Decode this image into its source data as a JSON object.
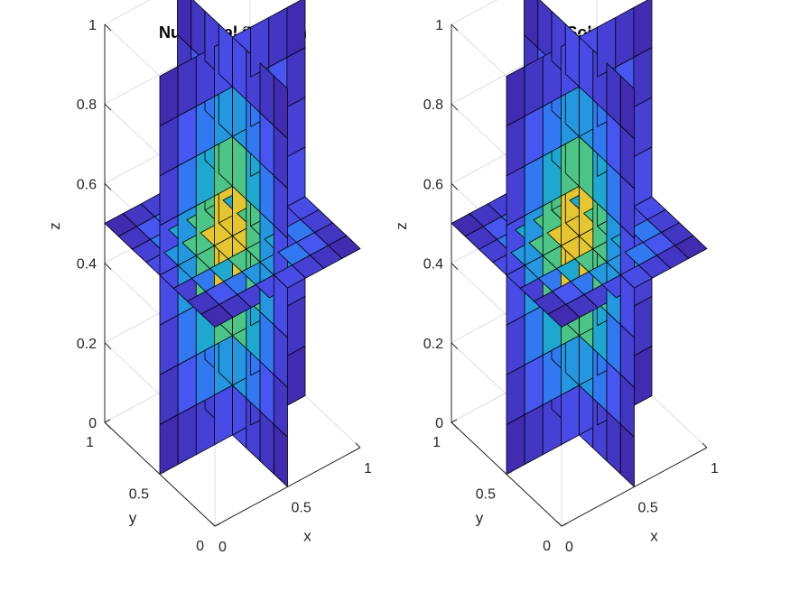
{
  "chart_data": [
    {
      "type": "surface-slices",
      "title": "Numerical Solution",
      "xlabel": "x",
      "ylabel": "y",
      "zlabel": "z",
      "xlim": [
        0,
        1
      ],
      "ylim": [
        0,
        1
      ],
      "zlim": [
        0,
        1
      ],
      "xticks": [
        "0",
        "0.5",
        "1"
      ],
      "yticks": [
        "0",
        "0.5",
        "1"
      ],
      "zticks": [
        "0",
        "0.2",
        "0.4",
        "0.6",
        "0.8",
        "1"
      ],
      "slices": {
        "x": 0.5,
        "y": 0.5,
        "z": 0.5
      },
      "grid": true,
      "colormap": "parula",
      "mesh_cells": 8,
      "peak_value": 1.0
    },
    {
      "type": "surface-slices",
      "title": "True Solution",
      "xlabel": "x",
      "ylabel": "y",
      "zlabel": "z",
      "xlim": [
        0,
        1
      ],
      "ylim": [
        0,
        1
      ],
      "zlim": [
        0,
        1
      ],
      "xticks": [
        "0",
        "0.5",
        "1"
      ],
      "yticks": [
        "0",
        "0.5",
        "1"
      ],
      "zticks": [
        "0",
        "0.2",
        "0.4",
        "0.6",
        "0.8",
        "1"
      ],
      "slices": {
        "x": 0.5,
        "y": 0.5,
        "z": 0.5
      },
      "grid": true,
      "colormap": "parula",
      "mesh_cells": 8,
      "peak_value": 1.0
    }
  ],
  "colors": {
    "parula": [
      "#3e26a8",
      "#4a50f0",
      "#2f7ff1",
      "#1da5d5",
      "#2cc0a3",
      "#81cc59",
      "#e0c231",
      "#fcde29",
      "#f9fb15"
    ],
    "edge": "#000000",
    "grid": "#dedede",
    "axis": "#262626"
  }
}
